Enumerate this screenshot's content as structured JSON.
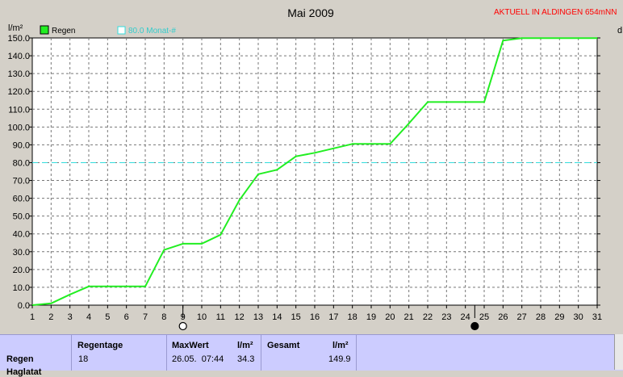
{
  "station": "AKTUELL IN ALDINGEN 654mNN",
  "chart_data": {
    "type": "line",
    "title": "Mai 2009",
    "ylabel": "l/m²",
    "y_axis_right_label": "d",
    "ylim": [
      0,
      150
    ],
    "y_ticks": [
      "0.0",
      "10.0",
      "20.0",
      "30.0",
      "40.0",
      "50.0",
      "60.0",
      "70.0",
      "80.0",
      "90.0",
      "100.0",
      "110.0",
      "120.0",
      "130.0",
      "140.0",
      "150.0"
    ],
    "x_ticks": [
      "1",
      "2",
      "3",
      "4",
      "5",
      "6",
      "7",
      "8",
      "9",
      "10",
      "11",
      "12",
      "13",
      "14",
      "15",
      "16",
      "17",
      "18",
      "19",
      "20",
      "21",
      "22",
      "23",
      "24",
      "25",
      "26",
      "27",
      "28",
      "29",
      "30",
      "31"
    ],
    "grid": true,
    "legend": "top-left",
    "series": [
      {
        "name": "Regen",
        "color": "#22ee22",
        "x": [
          1,
          2,
          3,
          4,
          5,
          6,
          7,
          8,
          9,
          10,
          11,
          12,
          13,
          14,
          15,
          16,
          17,
          18,
          19,
          20,
          21,
          22,
          23,
          24,
          25,
          26,
          27,
          28,
          29,
          30,
          31
        ],
        "y": [
          0,
          1,
          6,
          10.5,
          10.5,
          10.5,
          10.5,
          31,
          34.5,
          34.5,
          39.5,
          59,
          73.5,
          76,
          83.5,
          85.5,
          88,
          90.5,
          90.5,
          90.5,
          102,
          114,
          114,
          114,
          114,
          148.5,
          149.9,
          149.9,
          149.9,
          149.9,
          149.9
        ]
      }
    ],
    "reference_line": {
      "label": "80.0 Monat-#",
      "value": 80,
      "color": "#33dddd"
    },
    "moon_phases": [
      {
        "day": 9,
        "phase": "full-moon"
      },
      {
        "day": 24.5,
        "phase": "new-moon"
      }
    ]
  },
  "stats": {
    "row_label": "Regen",
    "row_label_cut": "Haglatat",
    "regentage_header": "Regentage",
    "regentage_value": "18",
    "maxwert_header": "MaxWert",
    "maxwert_unit": "l/m²",
    "maxwert_date": "26.05.  07:44",
    "maxwert_value": "34.3",
    "gesamt_header": "Gesamt",
    "gesamt_unit": "l/m²",
    "gesamt_value": "149.9"
  }
}
